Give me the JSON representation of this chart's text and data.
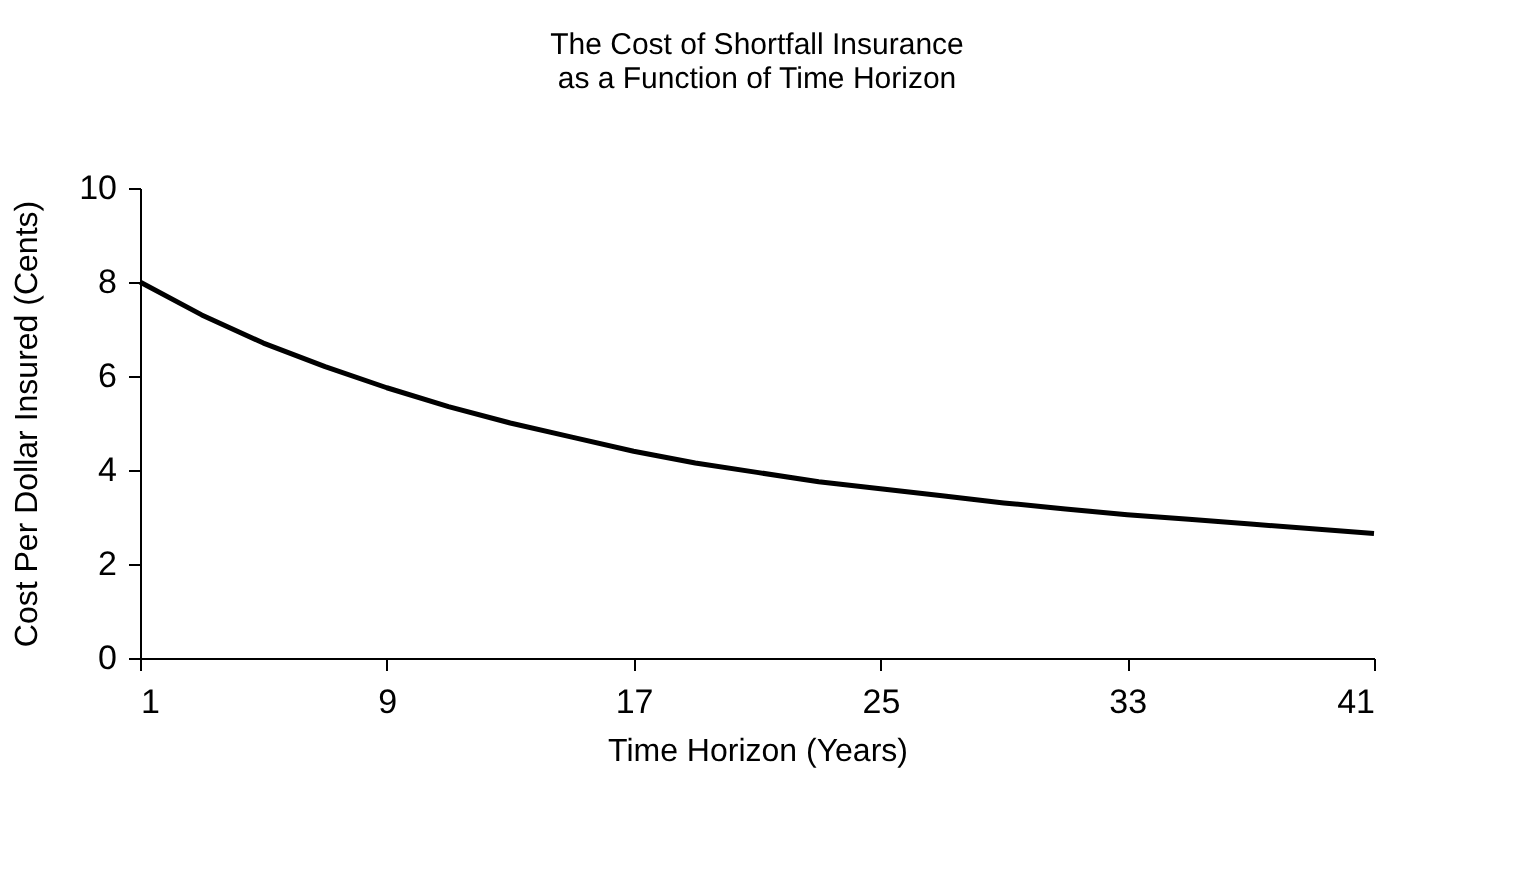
{
  "chart_data": {
    "type": "line",
    "title": [
      "The Cost of Shortfall Insurance",
      "as a Function of Time Horizon"
    ],
    "xlabel": "Time Horizon (Years)",
    "ylabel": "Cost Per Dollar Insured (Cents)",
    "x": [
      1,
      3,
      5,
      7,
      9,
      11,
      13,
      15,
      17,
      19,
      21,
      23,
      25,
      27,
      29,
      31,
      33,
      35,
      37,
      39,
      41
    ],
    "series": [
      {
        "color": "#000000",
        "values": [
          8.0,
          7.3,
          6.7,
          6.2,
          5.75,
          5.35,
          5.0,
          4.7,
          4.4,
          4.15,
          3.95,
          3.75,
          3.6,
          3.45,
          3.3,
          3.17,
          3.05,
          2.95,
          2.85,
          2.75,
          2.65
        ]
      }
    ],
    "xlim": [
      1,
      41
    ],
    "xticks": [
      1,
      9,
      17,
      25,
      33,
      41
    ],
    "ylim": [
      0,
      10
    ],
    "yticks": [
      0,
      2,
      4,
      6,
      8,
      10
    ],
    "grid": false,
    "marker": "none",
    "line_style": "solid"
  }
}
